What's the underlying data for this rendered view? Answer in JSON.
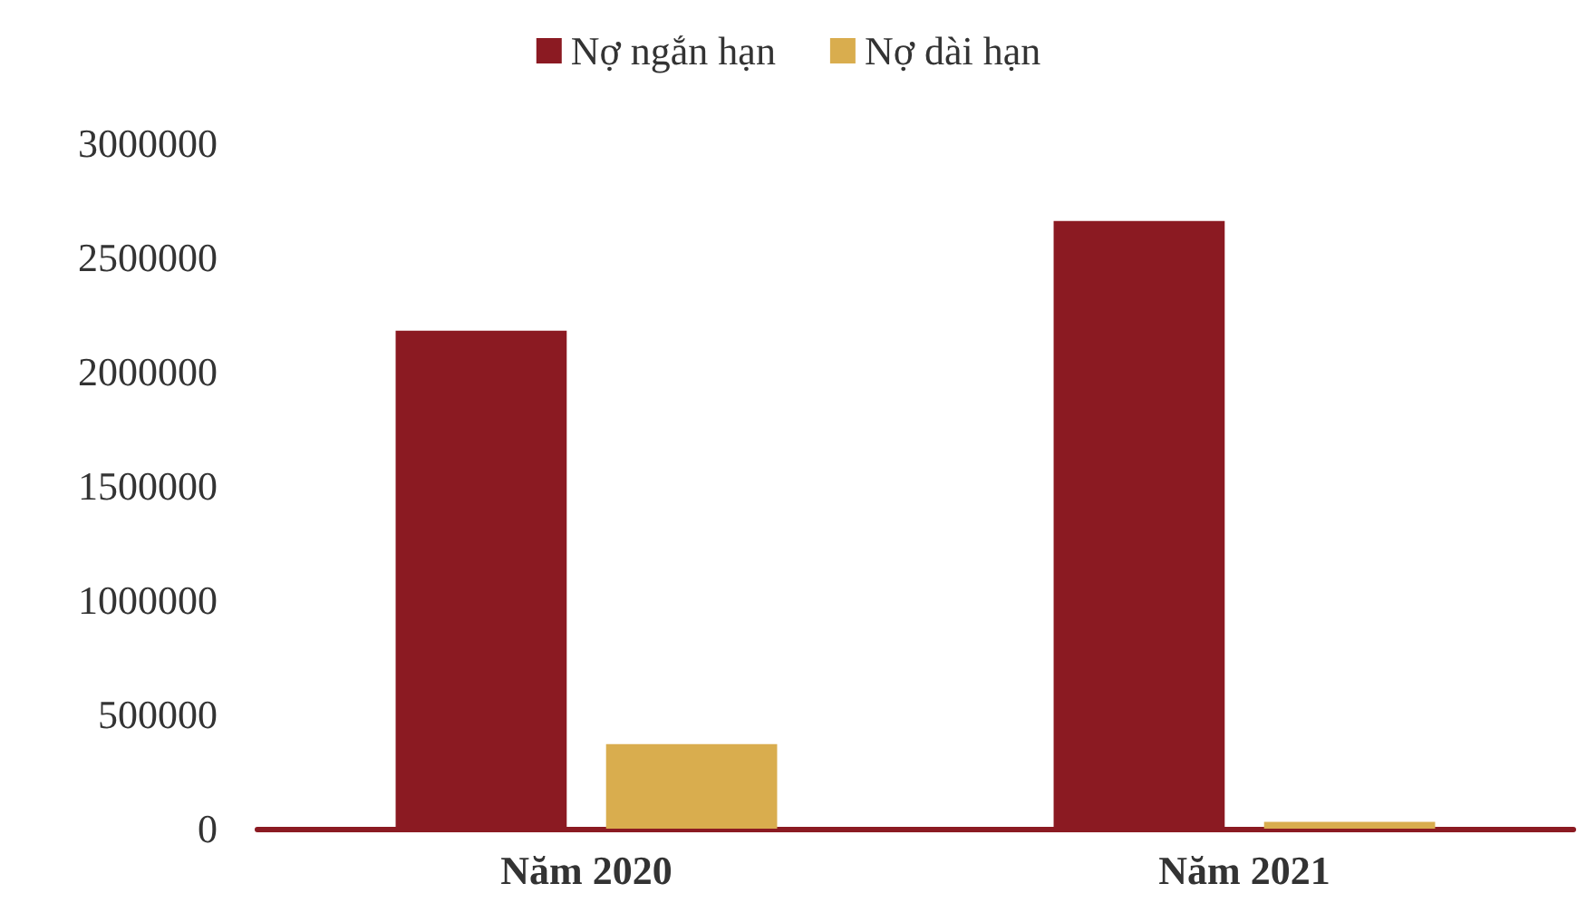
{
  "chart_data": {
    "type": "bar",
    "categories": [
      "Năm 2020",
      "Năm 2021"
    ],
    "series": [
      {
        "name": "Nợ ngắn hạn",
        "color": "#8b1a22",
        "values": [
          2180000,
          2660000
        ]
      },
      {
        "name": "Nợ dài hạn",
        "color": "#d9ad4e",
        "values": [
          370000,
          30000
        ]
      }
    ],
    "ylim": [
      0,
      3000000
    ],
    "yticks": [
      0,
      500000,
      1000000,
      1500000,
      2000000,
      2500000,
      3000000
    ],
    "grid": false,
    "legend": "top"
  }
}
